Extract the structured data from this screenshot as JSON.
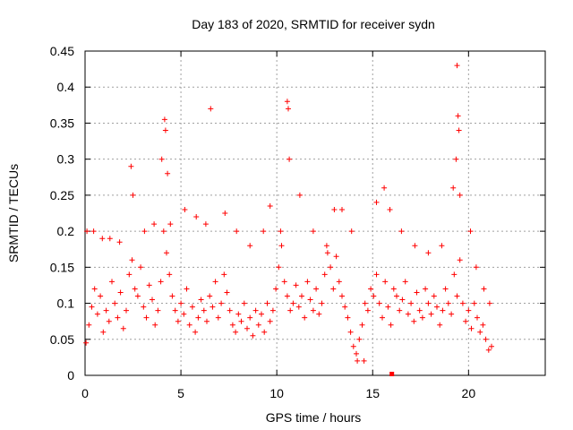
{
  "chart_data": {
    "type": "scatter",
    "title": "Day 183 of 2020, SRMTID for receiver sydn",
    "xlabel": "GPS time / hours",
    "ylabel": "SRMTID / TECUs",
    "xlim": [
      0,
      24
    ],
    "ylim": [
      0,
      0.45
    ],
    "xticks": [
      0,
      5,
      10,
      15,
      20
    ],
    "yticks": [
      0,
      0.05,
      0.1,
      0.15,
      0.2,
      0.25,
      0.3,
      0.35,
      0.4,
      0.45
    ],
    "xtick_labels": [
      "0",
      "5",
      "10",
      "15",
      "20"
    ],
    "ytick_labels": [
      "0",
      "0.05",
      "0.1",
      "0.15",
      "0.2",
      "0.25",
      "0.3",
      "0.35",
      "0.4",
      "0.45"
    ],
    "grid": true,
    "marker": "+",
    "color": "#ff0000",
    "series": [
      {
        "name": "SRMTID",
        "x": [
          0.05,
          0.2,
          0.35,
          0.5,
          0.65,
          0.8,
          0.95,
          1.1,
          1.25,
          1.4,
          1.55,
          1.7,
          1.85,
          2.0,
          2.15,
          2.3,
          2.45,
          2.6,
          2.75,
          2.9,
          3.05,
          3.2,
          3.35,
          3.5,
          3.65,
          3.8,
          3.95,
          4.1,
          4.25,
          4.4,
          4.55,
          4.7,
          4.85,
          5.0,
          5.15,
          5.3,
          5.45,
          5.6,
          5.75,
          5.9,
          6.05,
          6.2,
          6.35,
          6.5,
          6.65,
          6.8,
          6.95,
          7.1,
          7.25,
          7.4,
          7.55,
          7.7,
          7.85,
          8.0,
          8.15,
          8.3,
          8.45,
          8.6,
          8.75,
          8.9,
          9.05,
          9.2,
          9.35,
          9.5,
          9.65,
          9.8,
          9.95,
          10.1,
          10.25,
          10.4,
          10.55,
          10.7,
          10.85,
          11.0,
          11.15,
          11.3,
          11.45,
          11.6,
          11.75,
          11.9,
          12.05,
          12.2,
          12.35,
          12.5,
          12.65,
          12.8,
          12.95,
          13.1,
          13.25,
          13.4,
          13.55,
          13.7,
          13.85,
          14.0,
          14.15,
          14.3,
          14.45,
          14.6,
          14.75,
          14.9,
          15.05,
          15.2,
          15.35,
          15.5,
          15.65,
          15.8,
          15.95,
          16.1,
          16.25,
          16.4,
          16.55,
          16.7,
          16.85,
          17.0,
          17.15,
          17.3,
          17.45,
          17.6,
          17.75,
          17.9,
          18.05,
          18.2,
          18.35,
          18.5,
          18.65,
          18.8,
          18.95,
          19.1,
          19.25,
          19.4,
          19.55,
          19.7,
          19.85,
          20.0,
          20.15,
          20.3,
          20.45,
          20.6,
          20.75,
          20.9,
          21.05,
          21.2,
          0.1,
          0.45,
          0.9,
          1.3,
          1.8,
          2.4,
          2.5,
          3.1,
          3.6,
          4.0,
          4.15,
          4.2,
          4.3,
          4.45,
          5.2,
          5.8,
          6.3,
          6.55,
          7.3,
          7.9,
          8.6,
          9.3,
          9.65,
          10.2,
          10.55,
          10.6,
          10.65,
          11.2,
          11.9,
          12.6,
          13.0,
          13.4,
          13.9,
          14.2,
          14.55,
          15.2,
          15.6,
          15.9,
          16.5,
          17.2,
          17.9,
          18.6,
          19.2,
          19.35,
          19.4,
          19.45,
          19.5,
          19.55,
          20.1,
          20.4,
          20.8,
          21.1
        ],
        "y": [
          0.045,
          0.07,
          0.095,
          0.12,
          0.085,
          0.11,
          0.06,
          0.09,
          0.075,
          0.13,
          0.1,
          0.08,
          0.115,
          0.065,
          0.09,
          0.14,
          0.16,
          0.12,
          0.11,
          0.15,
          0.095,
          0.08,
          0.125,
          0.105,
          0.07,
          0.09,
          0.13,
          0.2,
          0.17,
          0.14,
          0.11,
          0.09,
          0.075,
          0.1,
          0.085,
          0.12,
          0.07,
          0.095,
          0.06,
          0.08,
          0.105,
          0.09,
          0.075,
          0.11,
          0.095,
          0.13,
          0.08,
          0.1,
          0.14,
          0.115,
          0.09,
          0.07,
          0.06,
          0.085,
          0.075,
          0.1,
          0.065,
          0.08,
          0.055,
          0.09,
          0.07,
          0.085,
          0.06,
          0.1,
          0.075,
          0.09,
          0.12,
          0.15,
          0.18,
          0.13,
          0.11,
          0.09,
          0.1,
          0.125,
          0.095,
          0.11,
          0.08,
          0.13,
          0.105,
          0.09,
          0.12,
          0.085,
          0.1,
          0.14,
          0.17,
          0.15,
          0.12,
          0.165,
          0.13,
          0.11,
          0.095,
          0.08,
          0.06,
          0.04,
          0.03,
          0.05,
          0.07,
          0.1,
          0.09,
          0.12,
          0.11,
          0.14,
          0.1,
          0.08,
          0.13,
          0.095,
          0.07,
          0.12,
          0.11,
          0.09,
          0.105,
          0.13,
          0.085,
          0.1,
          0.075,
          0.115,
          0.09,
          0.08,
          0.12,
          0.1,
          0.085,
          0.11,
          0.095,
          0.07,
          0.09,
          0.12,
          0.1,
          0.085,
          0.14,
          0.11,
          0.16,
          0.1,
          0.075,
          0.09,
          0.065,
          0.1,
          0.08,
          0.06,
          0.07,
          0.05,
          0.035,
          0.04,
          0.2,
          0.2,
          0.19,
          0.19,
          0.185,
          0.29,
          0.25,
          0.2,
          0.21,
          0.3,
          0.355,
          0.34,
          0.28,
          0.21,
          0.23,
          0.22,
          0.21,
          0.37,
          0.225,
          0.2,
          0.18,
          0.2,
          0.235,
          0.2,
          0.38,
          0.37,
          0.3,
          0.25,
          0.2,
          0.18,
          0.23,
          0.23,
          0.2,
          0.02,
          0.02,
          0.24,
          0.26,
          0.23,
          0.2,
          0.18,
          0.17,
          0.18,
          0.26,
          0.3,
          0.43,
          0.36,
          0.34,
          0.25,
          0.2,
          0.15,
          0.12,
          0.1
        ]
      }
    ],
    "annotations": [
      {
        "x": 16.0,
        "y": 0.0
      }
    ]
  }
}
